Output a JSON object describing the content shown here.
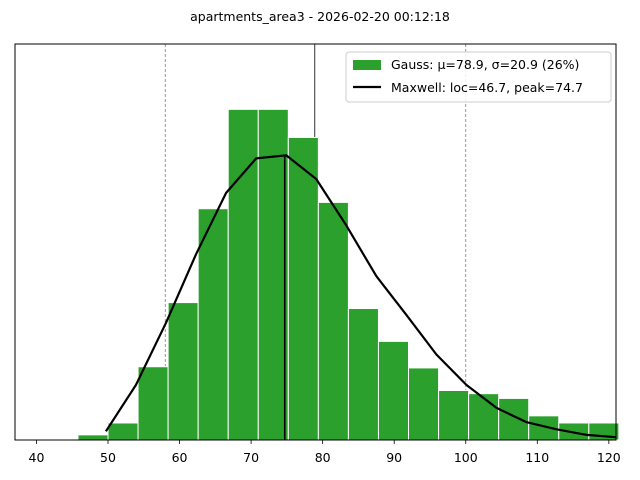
{
  "chart_data": {
    "type": "bar",
    "title": "apartments_area3  -  2026-02-20 00:12:18",
    "xlim": [
      37,
      121
    ],
    "ylim": [
      0,
      100
    ],
    "y_ticks_shown": false,
    "grid": false,
    "xticks": [
      40,
      50,
      60,
      70,
      80,
      90,
      100,
      110,
      120
    ],
    "bin_width": 4.2,
    "bins": [
      {
        "start": 41.6,
        "value": 0.2
      },
      {
        "start": 45.8,
        "value": 1.3
      },
      {
        "start": 50.0,
        "value": 4.3
      },
      {
        "start": 54.2,
        "value": 18.5
      },
      {
        "start": 58.4,
        "value": 34.7
      },
      {
        "start": 62.6,
        "value": 58.4
      },
      {
        "start": 66.8,
        "value": 83.5
      },
      {
        "start": 71.0,
        "value": 83.5
      },
      {
        "start": 75.2,
        "value": 76.4
      },
      {
        "start": 79.4,
        "value": 60.0
      },
      {
        "start": 83.6,
        "value": 33.2
      },
      {
        "start": 87.8,
        "value": 24.9
      },
      {
        "start": 92.0,
        "value": 18.2
      },
      {
        "start": 96.2,
        "value": 12.5
      },
      {
        "start": 100.4,
        "value": 11.7
      },
      {
        "start": 104.6,
        "value": 10.5
      },
      {
        "start": 108.8,
        "value": 6.1
      },
      {
        "start": 113.0,
        "value": 4.3
      },
      {
        "start": 117.2,
        "value": 4.3
      }
    ],
    "curve": {
      "points": [
        [
          49.7,
          2.2
        ],
        [
          53.9,
          13.9
        ],
        [
          58.1,
          29.6
        ],
        [
          62.3,
          46.9
        ],
        [
          66.5,
          62.4
        ],
        [
          70.7,
          71.1
        ],
        [
          74.9,
          71.9
        ],
        [
          79.1,
          65.9
        ],
        [
          83.3,
          54.2
        ],
        [
          87.5,
          41.4
        ],
        [
          91.7,
          31.6
        ],
        [
          95.9,
          21.6
        ],
        [
          100.1,
          13.9
        ],
        [
          104.3,
          8.1
        ],
        [
          108.5,
          4.5
        ],
        [
          112.7,
          2.7
        ],
        [
          116.9,
          1.3
        ],
        [
          121.0,
          0.7
        ]
      ]
    },
    "vertical_lines": [
      {
        "x": 58.0,
        "style": "dashed",
        "color": "#808080"
      },
      {
        "x": 78.9,
        "style": "solid",
        "color": "#000000",
        "partial": true
      },
      {
        "x": 100.0,
        "style": "dashed",
        "color": "#808080"
      },
      {
        "x": 74.7,
        "style": "solid",
        "color": "#000000",
        "to_curve": true
      }
    ],
    "legend": {
      "placement": "top-right",
      "entries": [
        {
          "label": "Gauss: μ=78.9, σ=20.9 (26%)",
          "kind": "patch",
          "color": "#2ca02c"
        },
        {
          "label": "Maxwell: loc=46.7, peak=74.7",
          "kind": "line",
          "color": "#000000"
        }
      ]
    },
    "colors": {
      "bar": "#2ca02c",
      "bar_edge": "#ffffff",
      "curve": "#000000"
    }
  }
}
